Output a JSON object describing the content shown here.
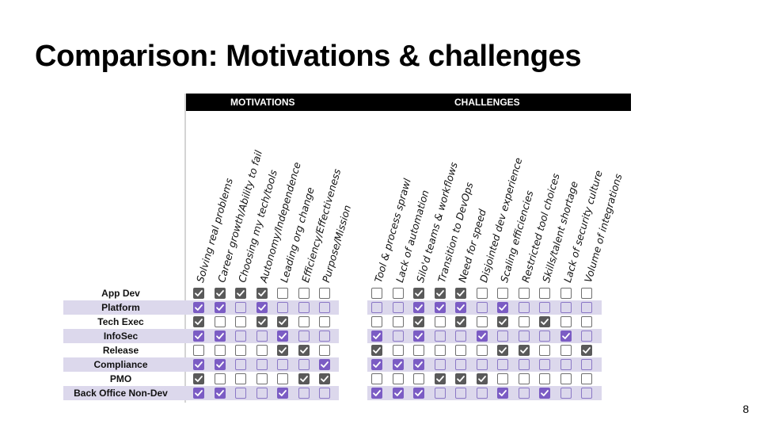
{
  "slide": {
    "title": "Comparison: Motivations & challenges",
    "page_number": "8"
  },
  "table": {
    "groups": [
      "MOTIVATIONS",
      "CHALLENGES"
    ],
    "motivations": [
      "Solving real problems",
      "Career growth/Ability to fail",
      "Choosing my tech/tools",
      "Autonomy/Independence",
      "Leading org change",
      "Efficiency/Effectiveness",
      "Purpose/Mission"
    ],
    "challenges": [
      "Tool & process sprawl",
      "Lack of automation",
      "Silo'd teams & workflows",
      "Transition to DevOps",
      "Need for speed",
      "Disjointed dev experience",
      "Scaling efficiencies",
      "Restricted tool choices",
      "Skills/talent shortage",
      "Lack of security culture",
      "Volume of integrations"
    ],
    "rows": [
      {
        "label": "App Dev",
        "m": [
          1,
          1,
          1,
          1,
          0,
          0,
          0
        ],
        "c": [
          0,
          0,
          1,
          1,
          1,
          0,
          0,
          0,
          0,
          0,
          0
        ]
      },
      {
        "label": "Platform",
        "m": [
          1,
          1,
          0,
          1,
          0,
          0,
          0
        ],
        "c": [
          0,
          0,
          1,
          1,
          1,
          0,
          1,
          0,
          0,
          0,
          0
        ]
      },
      {
        "label": "Tech Exec",
        "m": [
          1,
          0,
          0,
          1,
          1,
          0,
          0
        ],
        "c": [
          0,
          0,
          1,
          0,
          1,
          0,
          1,
          0,
          1,
          0,
          0
        ]
      },
      {
        "label": "InfoSec",
        "m": [
          1,
          1,
          0,
          0,
          1,
          0,
          0
        ],
        "c": [
          1,
          0,
          1,
          0,
          0,
          1,
          0,
          0,
          0,
          1,
          0
        ]
      },
      {
        "label": "Release",
        "m": [
          0,
          0,
          0,
          0,
          1,
          1,
          0
        ],
        "c": [
          1,
          0,
          0,
          0,
          0,
          0,
          1,
          1,
          0,
          0,
          1
        ]
      },
      {
        "label": "Compliance",
        "m": [
          1,
          1,
          0,
          0,
          0,
          0,
          1
        ],
        "c": [
          1,
          1,
          1,
          0,
          0,
          0,
          0,
          0,
          0,
          0,
          0
        ]
      },
      {
        "label": "PMO",
        "m": [
          1,
          0,
          0,
          0,
          0,
          1,
          1
        ],
        "c": [
          0,
          0,
          0,
          1,
          1,
          1,
          0,
          0,
          0,
          0,
          0
        ]
      },
      {
        "label": "Back Office Non-Dev",
        "m": [
          1,
          1,
          0,
          0,
          1,
          0,
          0
        ],
        "c": [
          1,
          1,
          1,
          0,
          0,
          0,
          1,
          0,
          1,
          0,
          0
        ]
      }
    ]
  }
}
